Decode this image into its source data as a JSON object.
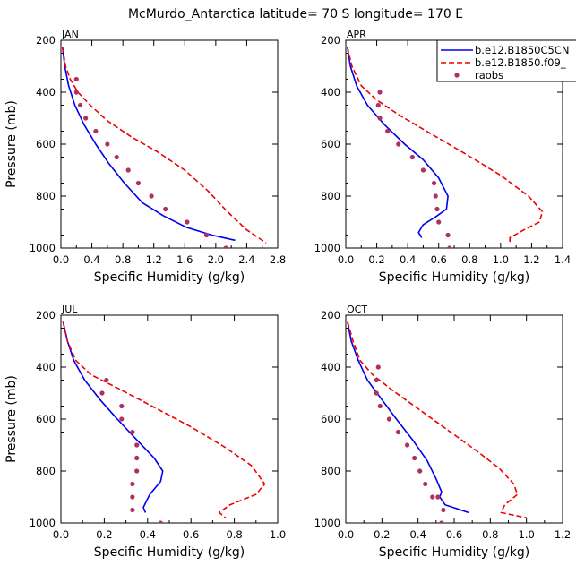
{
  "figure": {
    "title": "McMurdo_Antarctica  latitude= 70 S longitude= 170 E"
  },
  "legend": {
    "entries": [
      {
        "label": "b.e12.B1850C5CN",
        "color": "#0000ee",
        "style": "solid"
      },
      {
        "label": "b.e12.B1850.f09_",
        "color": "#ee0000",
        "style": "dashed"
      },
      {
        "label": "raobs",
        "color": "#b03060",
        "style": "marker"
      }
    ]
  },
  "chart_data": [
    {
      "type": "line",
      "panel": "JAN",
      "xlabel": "Specific Humidity (g/kg)",
      "ylabel": "Pressure (mb)",
      "xlim": [
        0,
        2.8
      ],
      "ylim": [
        200,
        1000
      ],
      "y_inverted": true,
      "xticks": [
        "0.0",
        "0.4",
        "0.8",
        "1.2",
        "1.6",
        "2.0",
        "2.4",
        "2.8"
      ],
      "yticks": [
        "200",
        "400",
        "600",
        "800",
        "1000"
      ],
      "series": [
        {
          "name": "b.e12.B1850C5CN",
          "style": "solid",
          "color": "#0000ee",
          "x": [
            0.02,
            0.05,
            0.1,
            0.18,
            0.3,
            0.45,
            0.62,
            0.82,
            1.05,
            1.32,
            1.62,
            1.95,
            2.25
          ],
          "y": [
            225,
            300,
            375,
            450,
            525,
            600,
            675,
            750,
            825,
            875,
            920,
            950,
            970
          ]
        },
        {
          "name": "b.e12.B1850.f09_",
          "style": "dashed",
          "color": "#ee0000",
          "x": [
            0.02,
            0.06,
            0.12,
            0.22,
            0.38,
            0.6,
            0.9,
            1.25,
            1.6,
            1.9,
            2.15,
            2.4,
            2.65
          ],
          "y": [
            225,
            300,
            350,
            400,
            450,
            510,
            570,
            630,
            700,
            780,
            860,
            930,
            980
          ]
        },
        {
          "name": "raobs",
          "style": "marker",
          "color": "#b03060",
          "x": [
            0.2,
            0.2,
            0.25,
            0.32,
            0.45,
            0.6,
            0.72,
            0.87,
            1.0,
            1.17,
            1.35,
            1.63,
            1.88,
            2.13
          ],
          "y": [
            350,
            400,
            450,
            500,
            550,
            600,
            650,
            700,
            750,
            800,
            850,
            900,
            950,
            1000
          ]
        }
      ]
    },
    {
      "type": "line",
      "panel": "APR",
      "xlabel": "Specific Humidity (g/kg)",
      "ylabel": "",
      "xlim": [
        0,
        1.4
      ],
      "ylim": [
        200,
        1000
      ],
      "y_inverted": true,
      "xticks": [
        "0.0",
        "0.2",
        "0.4",
        "0.6",
        "0.8",
        "1.0",
        "1.2",
        "1.4"
      ],
      "yticks": [
        "200",
        "400",
        "600",
        "800",
        "1000"
      ],
      "series": [
        {
          "name": "b.e12.B1850C5CN",
          "style": "solid",
          "color": "#0000ee",
          "x": [
            0.01,
            0.03,
            0.07,
            0.14,
            0.25,
            0.38,
            0.5,
            0.6,
            0.66,
            0.65,
            0.58,
            0.5,
            0.47,
            0.49
          ],
          "y": [
            225,
            300,
            375,
            450,
            525,
            600,
            660,
            730,
            800,
            850,
            880,
            910,
            940,
            960
          ]
        },
        {
          "name": "b.e12.B1850.f09_",
          "style": "dashed",
          "color": "#ee0000",
          "x": [
            0.01,
            0.04,
            0.1,
            0.2,
            0.35,
            0.55,
            0.78,
            1.0,
            1.18,
            1.27,
            1.25,
            1.15,
            1.06,
            1.06
          ],
          "y": [
            225,
            300,
            375,
            430,
            490,
            560,
            640,
            720,
            800,
            860,
            900,
            930,
            960,
            980
          ]
        },
        {
          "name": "raobs",
          "style": "marker",
          "color": "#b03060",
          "x": [
            0.22,
            0.21,
            0.22,
            0.27,
            0.34,
            0.43,
            0.5,
            0.57,
            0.58,
            0.59,
            0.6,
            0.66,
            0.67
          ],
          "y": [
            400,
            450,
            500,
            550,
            600,
            650,
            700,
            750,
            800,
            850,
            900,
            950,
            1000
          ]
        }
      ]
    },
    {
      "type": "line",
      "panel": "JUL",
      "xlabel": "Specific Humidity (g/kg)",
      "ylabel": "Pressure (mb)",
      "xlim": [
        0,
        1.0
      ],
      "ylim": [
        200,
        1000
      ],
      "y_inverted": true,
      "xticks": [
        "0.0",
        "0.2",
        "0.4",
        "0.6",
        "0.8",
        "1.0"
      ],
      "yticks": [
        "200",
        "400",
        "600",
        "800",
        "1000"
      ],
      "series": [
        {
          "name": "b.e12.B1850C5CN",
          "style": "solid",
          "color": "#0000ee",
          "x": [
            0.01,
            0.03,
            0.06,
            0.11,
            0.18,
            0.26,
            0.35,
            0.43,
            0.47,
            0.46,
            0.41,
            0.38,
            0.39
          ],
          "y": [
            225,
            300,
            375,
            450,
            525,
            600,
            680,
            750,
            800,
            840,
            890,
            940,
            960
          ]
        },
        {
          "name": "b.e12.B1850.f09_",
          "style": "dashed",
          "color": "#ee0000",
          "x": [
            0.01,
            0.03,
            0.07,
            0.14,
            0.26,
            0.42,
            0.6,
            0.76,
            0.88,
            0.94,
            0.9,
            0.78,
            0.73,
            0.76
          ],
          "y": [
            225,
            300,
            375,
            430,
            480,
            550,
            630,
            710,
            780,
            850,
            890,
            930,
            960,
            980
          ]
        },
        {
          "name": "raobs",
          "style": "marker",
          "color": "#b03060",
          "x": [
            0.21,
            0.19,
            0.28,
            0.28,
            0.33,
            0.35,
            0.35,
            0.35,
            0.33,
            0.33,
            0.33,
            0.46
          ],
          "y": [
            450,
            500,
            550,
            600,
            650,
            700,
            750,
            800,
            850,
            900,
            950,
            1000
          ]
        }
      ]
    },
    {
      "type": "line",
      "panel": "OCT",
      "xlabel": "Specific Humidity (g/kg)",
      "ylabel": "",
      "xlim": [
        0,
        1.2
      ],
      "ylim": [
        200,
        1000
      ],
      "y_inverted": true,
      "xticks": [
        "0.0",
        "0.2",
        "0.4",
        "0.6",
        "0.8",
        "1.0",
        "1.2"
      ],
      "yticks": [
        "200",
        "400",
        "600",
        "800",
        "1000"
      ],
      "series": [
        {
          "name": "b.e12.B1850C5CN",
          "style": "solid",
          "color": "#0000ee",
          "x": [
            0.01,
            0.03,
            0.07,
            0.12,
            0.2,
            0.28,
            0.37,
            0.45,
            0.5,
            0.53,
            0.52,
            0.55,
            0.68
          ],
          "y": [
            225,
            300,
            375,
            450,
            525,
            600,
            680,
            760,
            830,
            880,
            900,
            930,
            960
          ]
        },
        {
          "name": "b.e12.B1850.f09_",
          "style": "dashed",
          "color": "#ee0000",
          "x": [
            0.01,
            0.04,
            0.08,
            0.15,
            0.26,
            0.4,
            0.56,
            0.72,
            0.85,
            0.93,
            0.95,
            0.88,
            0.86,
            1.0
          ],
          "y": [
            225,
            300,
            375,
            430,
            490,
            560,
            640,
            720,
            790,
            850,
            890,
            930,
            960,
            980
          ]
        },
        {
          "name": "raobs",
          "style": "marker",
          "color": "#b03060",
          "x": [
            0.18,
            0.17,
            0.17,
            0.19,
            0.24,
            0.29,
            0.34,
            0.38,
            0.41,
            0.44,
            0.48,
            0.51,
            0.54,
            0.53
          ],
          "y": [
            400,
            450,
            500,
            550,
            600,
            650,
            700,
            750,
            800,
            850,
            900,
            900,
            950,
            1000
          ]
        }
      ]
    }
  ]
}
